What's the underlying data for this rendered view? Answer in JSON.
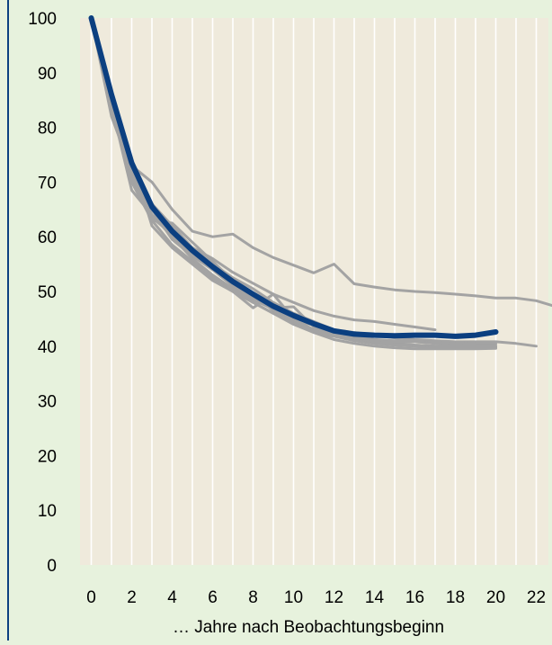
{
  "chart_data": {
    "type": "line",
    "title": "",
    "xlabel": "… Jahre nach Beobachtungsbeginn",
    "ylabel": "",
    "xlim": [
      0,
      23
    ],
    "ylim": [
      0,
      100
    ],
    "x_ticks": [
      0,
      2,
      4,
      6,
      8,
      10,
      12,
      14,
      16,
      18,
      20,
      22
    ],
    "y_ticks": [
      0,
      10,
      20,
      30,
      40,
      50,
      60,
      70,
      80,
      90,
      100
    ],
    "grid": "vertical",
    "legend": "none",
    "colors": {
      "background": "#e7f2dd",
      "plot_background": "#efeadc",
      "grid": "#ffffff",
      "highlight": "#0b3f80",
      "other_series": "#a3a3a3",
      "frame": "#0b3f80"
    },
    "highlight_series": {
      "x": [
        0,
        1,
        2,
        3,
        4,
        5,
        6,
        7,
        8,
        9,
        10,
        11,
        12,
        13,
        14,
        15,
        16,
        17,
        18,
        19,
        20
      ],
      "values": [
        100,
        86,
        73.5,
        65.5,
        61,
        57.5,
        54.5,
        51.8,
        49.5,
        47.3,
        45.6,
        44.1,
        42.8,
        42.2,
        42,
        41.9,
        42,
        42,
        41.8,
        42,
        42.6
      ]
    },
    "series": [
      {
        "x": [
          0,
          1,
          2,
          3,
          4,
          5,
          6,
          7,
          8,
          9,
          10,
          11,
          12,
          13,
          14,
          15,
          16,
          17,
          18,
          19,
          20,
          21,
          22,
          23
        ],
        "values": [
          100,
          84,
          73,
          70,
          65,
          61,
          60,
          60.5,
          58,
          56.2,
          54.8,
          53.4,
          55,
          51.4,
          50.8,
          50.3,
          50,
          49.8,
          49.5,
          49.2,
          48.8,
          48.8,
          48.3,
          47.2
        ]
      },
      {
        "x": [
          0,
          1,
          2,
          3,
          4,
          5,
          6,
          7,
          8,
          9,
          10,
          11,
          12,
          13,
          14,
          15,
          16,
          17
        ],
        "values": [
          100,
          85,
          74,
          66,
          62,
          58,
          56,
          53.5,
          51.5,
          49.5,
          48,
          46.5,
          45.5,
          44.8,
          44.5,
          44,
          43.5,
          43
        ]
      },
      {
        "x": [
          0,
          1,
          2,
          3,
          4,
          5,
          6,
          7,
          8,
          9,
          10,
          11,
          12,
          13,
          14,
          15,
          16,
          17,
          18,
          19,
          20,
          21,
          22
        ],
        "values": [
          100,
          84,
          68.5,
          64,
          61,
          57.5,
          55,
          52.5,
          50.5,
          48,
          46,
          44.5,
          43,
          42.5,
          42,
          41.5,
          41.2,
          41,
          40.8,
          40.8,
          40.8,
          40.5,
          40
        ]
      },
      {
        "x": [
          0,
          1,
          2,
          3,
          4,
          5,
          6,
          7,
          8,
          9,
          10,
          11,
          12,
          13,
          14,
          15,
          16,
          17,
          18,
          19,
          20
        ],
        "values": [
          100,
          82,
          72,
          63,
          58.5,
          55.5,
          52.5,
          50,
          48,
          46,
          44.5,
          42.5,
          41.8,
          41.5,
          41.2,
          41,
          40.8,
          40.5,
          40.3,
          40.2,
          40
        ]
      },
      {
        "x": [
          0,
          1,
          2,
          3,
          4,
          5,
          6,
          7,
          8,
          9,
          10,
          11,
          12,
          13,
          14,
          15,
          16,
          17,
          18,
          19,
          20
        ],
        "values": [
          100,
          85,
          74,
          62,
          58,
          55,
          52,
          50,
          47,
          49.5,
          45,
          43,
          42,
          41,
          40.5,
          40.2,
          40,
          40,
          39.9,
          39.8,
          39.8
        ]
      },
      {
        "x": [
          0,
          1,
          2,
          3,
          4,
          5,
          6,
          7,
          8,
          9,
          10,
          11,
          12,
          13,
          14,
          15,
          16,
          17,
          18,
          19,
          20
        ],
        "values": [
          100,
          86,
          72,
          64,
          60,
          57,
          54,
          51.5,
          49,
          47,
          47.2,
          43.5,
          42,
          41,
          40.8,
          40.5,
          40.2,
          40,
          39.9,
          39.8,
          39.8
        ]
      },
      {
        "x": [
          0,
          1,
          2,
          3,
          4,
          5,
          6,
          7,
          8,
          9,
          10,
          11,
          12,
          13,
          14,
          15,
          16,
          17,
          18,
          19,
          20
        ],
        "values": [
          100,
          84,
          70,
          63,
          62.5,
          59,
          55.5,
          52,
          49.5,
          46.5,
          44.5,
          42.8,
          41.8,
          41,
          40.5,
          40.2,
          40,
          39.8,
          39.8,
          39.8,
          39.7
        ]
      },
      {
        "x": [
          0,
          1,
          2,
          3,
          4,
          5,
          6,
          7,
          8,
          9,
          10,
          11,
          12,
          13,
          14,
          15,
          16,
          17,
          18,
          19,
          20
        ],
        "values": [
          100,
          85,
          71,
          65,
          60,
          56,
          53,
          50.5,
          48,
          46,
          44,
          42.5,
          41.2,
          40.5,
          40,
          39.7,
          39.5,
          39.5,
          39.5,
          39.5,
          39.6
        ]
      },
      {
        "x": [
          0,
          1,
          2,
          3,
          4,
          5,
          6,
          7,
          8,
          9,
          10,
          11,
          12,
          13,
          14,
          15,
          16,
          17,
          18,
          19,
          20
        ],
        "values": [
          100,
          83,
          72,
          65,
          59.5,
          56.5,
          54,
          51,
          48.5,
          46.8,
          45,
          43.8,
          42.5,
          41.5,
          40.8,
          40.5,
          40.2,
          40,
          40,
          40,
          40
        ]
      },
      {
        "x": [
          0,
          1,
          2,
          3,
          4,
          5,
          6,
          7,
          8,
          9,
          10,
          11,
          12,
          13,
          14,
          15,
          16,
          17,
          18,
          19,
          20
        ],
        "values": [
          100,
          84,
          71,
          63.5,
          60.5,
          58,
          55,
          52,
          49,
          47.5,
          45.5,
          44,
          42.5,
          41.8,
          41.2,
          40.8,
          40.8,
          40.6,
          40.5,
          40.4,
          40.4
        ]
      }
    ]
  }
}
